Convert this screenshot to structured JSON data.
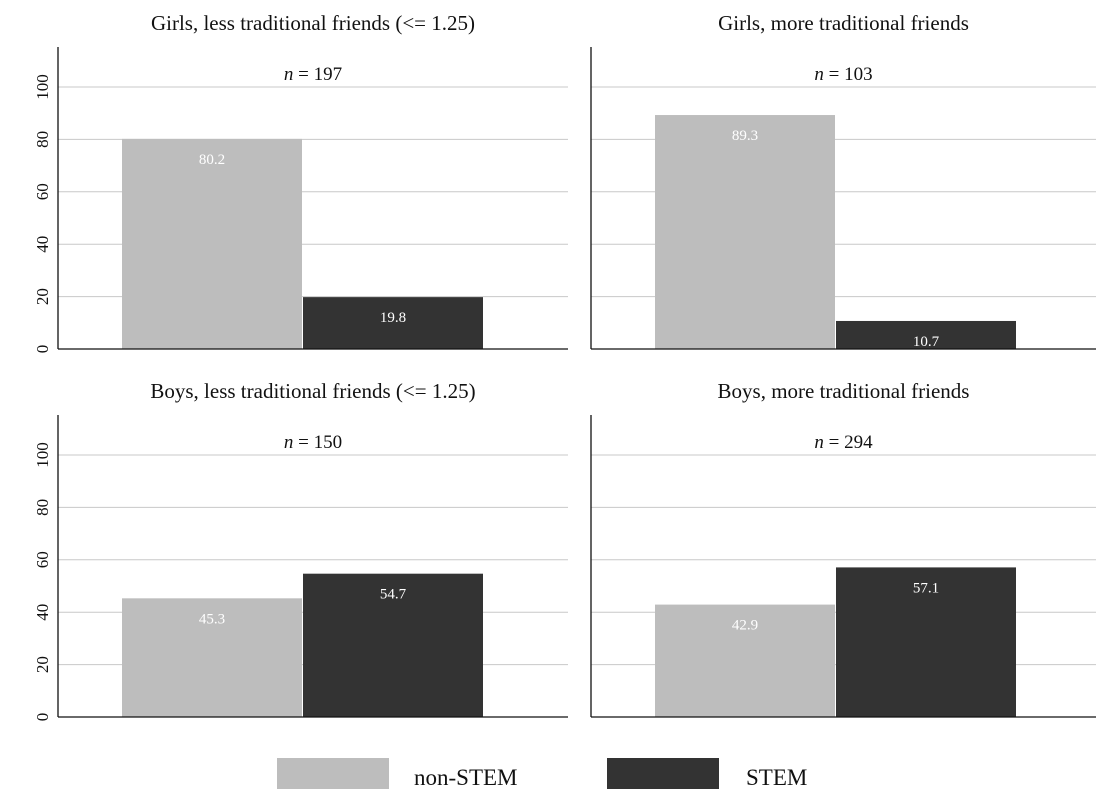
{
  "chart_data": {
    "type": "bar",
    "ylim": [
      0,
      100
    ],
    "yticks": [
      0,
      20,
      40,
      60,
      80,
      100
    ],
    "grid": true,
    "legend_position": "bottom",
    "colors": {
      "non-STEM": "#bdbdbd",
      "STEM": "#333333"
    },
    "legend": [
      {
        "label": "non-STEM",
        "color": "#bdbdbd"
      },
      {
        "label": "STEM",
        "color": "#333333"
      }
    ],
    "panels": [
      {
        "title": "Girls, less traditional friends (<= 1.25)",
        "n_prefix": "n",
        "n_text": " = 197",
        "values": [
          {
            "series": "non-STEM",
            "value": 80.2,
            "label": "80.2"
          },
          {
            "series": "STEM",
            "value": 19.8,
            "label": "19.8"
          }
        ]
      },
      {
        "title": "Girls, more traditional friends",
        "n_prefix": "n",
        "n_text": " = 103",
        "values": [
          {
            "series": "non-STEM",
            "value": 89.3,
            "label": "89.3"
          },
          {
            "series": "STEM",
            "value": 10.7,
            "label": "10.7"
          }
        ]
      },
      {
        "title": "Boys, less traditional friends (<= 1.25)",
        "n_prefix": "n",
        "n_text": " = 150",
        "values": [
          {
            "series": "non-STEM",
            "value": 45.3,
            "label": "45.3"
          },
          {
            "series": "STEM",
            "value": 54.7,
            "label": "54.7"
          }
        ]
      },
      {
        "title": "Boys, more traditional friends",
        "n_prefix": "n",
        "n_text": " = 294",
        "values": [
          {
            "series": "non-STEM",
            "value": 42.9,
            "label": "42.9"
          },
          {
            "series": "STEM",
            "value": 57.1,
            "label": "57.1"
          }
        ]
      }
    ]
  }
}
